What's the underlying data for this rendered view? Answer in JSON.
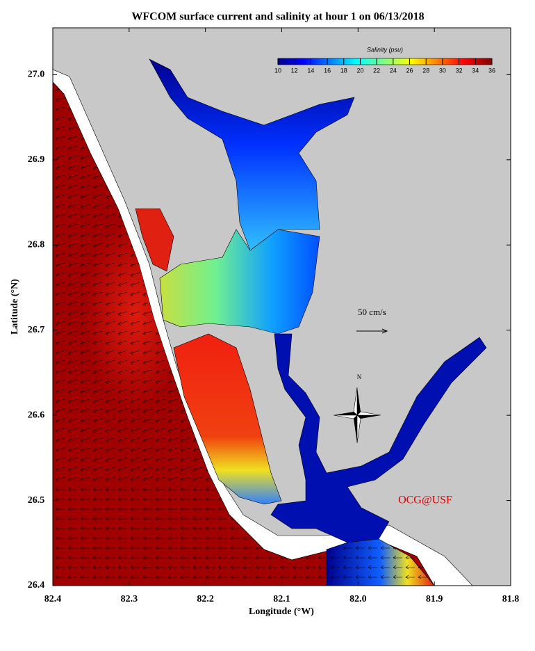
{
  "title": "WFCOM surface current and salinity at hour 1 on 06/13/2018",
  "x_axis": {
    "label": "Longitude (°W)",
    "lim": [
      82.4,
      81.8
    ],
    "ticks": [
      82.4,
      82.3,
      82.2,
      82.1,
      {
        "value": 82,
        "label": "82.0"
      },
      81.9,
      81.8
    ]
  },
  "y_axis": {
    "label": "Latitude (°N)",
    "lim": [
      26.4,
      27.055
    ],
    "ticks": [
      26.4,
      26.5,
      26.6,
      26.7,
      26.8,
      26.9,
      {
        "value": 27,
        "label": "27.0"
      }
    ]
  },
  "colorbar": {
    "title": "Salinity (psu)",
    "lim": [
      10,
      36
    ],
    "ticks": [
      10,
      12,
      14,
      16,
      18,
      20,
      22,
      24,
      26,
      28,
      30,
      32,
      34,
      36
    ]
  },
  "scale_label": "50 cm/s",
  "north_label": "N",
  "credit": "OCG@USF"
}
